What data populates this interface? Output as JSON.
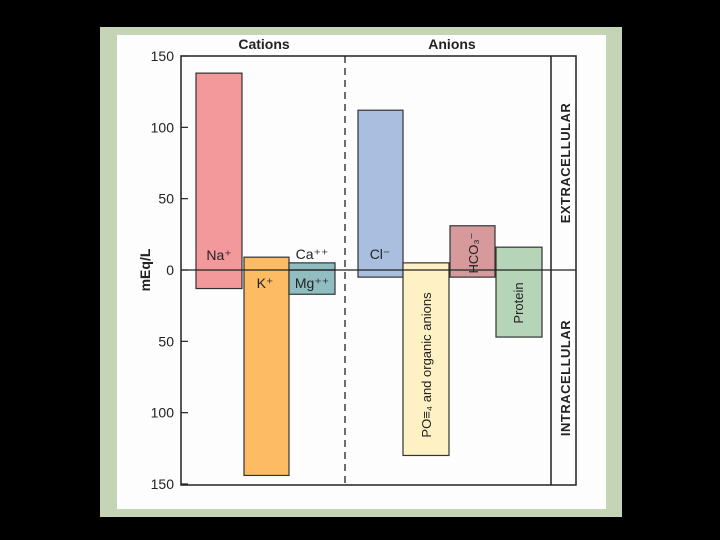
{
  "chart_data": {
    "type": "bar",
    "ylabel": "mEq/L",
    "ylim": [
      -150,
      150
    ],
    "y_ticks": [
      {
        "value": 150,
        "label": "150"
      },
      {
        "value": 100,
        "label": "100"
      },
      {
        "value": 50,
        "label": "50"
      },
      {
        "value": 0,
        "label": "0"
      },
      {
        "value": -50,
        "label": "50"
      },
      {
        "value": -100,
        "label": "100"
      },
      {
        "value": -150,
        "label": "150"
      }
    ],
    "groups": [
      "Cations",
      "Anions"
    ],
    "side_labels": {
      "top": "EXTRACELLULAR",
      "bottom": "INTRACELLULAR"
    },
    "bars": [
      {
        "ion": "Na⁺",
        "group": "Cations",
        "extracellular": 138,
        "intracellular": 13,
        "color": "#f4999b"
      },
      {
        "ion": "K⁺",
        "group": "Cations",
        "extracellular": 9,
        "intracellular": 144,
        "color": "#fdbc63"
      },
      {
        "ion": "Ca⁺⁺",
        "group": "Cations",
        "extracellular": 5,
        "intracellular": 0,
        "color": "#8fbdc0"
      },
      {
        "ion": "Mg⁺⁺",
        "group": "Cations",
        "extracellular": 0,
        "intracellular": 17,
        "color": "#8fbdc0"
      },
      {
        "ion": "Cl⁻",
        "group": "Anions",
        "extracellular": 112,
        "intracellular": 5,
        "color": "#aabfe0"
      },
      {
        "ion": "PO≡₄ and organic anions",
        "group": "Anions",
        "extracellular": 5,
        "intracellular": 130,
        "color": "#fef1c4"
      },
      {
        "ion": "HCO₃⁻",
        "group": "Anions",
        "extracellular": 31,
        "intracellular": 5,
        "color": "#d69a9c"
      },
      {
        "ion": "Protein",
        "group": "Anions",
        "extracellular": 16,
        "intracellular": 47,
        "color": "#b6d4b8"
      }
    ]
  }
}
